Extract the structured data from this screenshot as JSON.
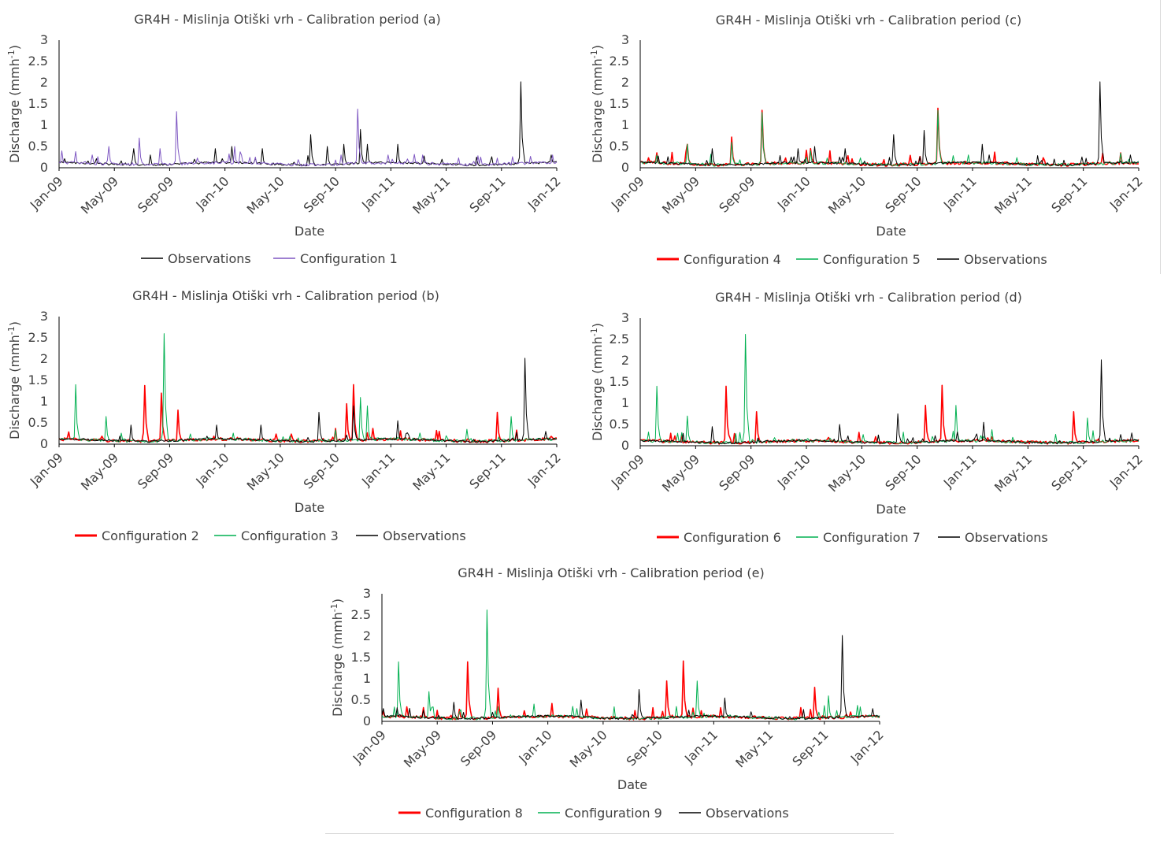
{
  "colors": {
    "observations": "#000000",
    "config1": "#7e57c2",
    "red": "#ff0000",
    "green": "#00b050"
  },
  "charts": [
    {
      "id": "a",
      "title": "GR4H - Mislinja Otiški vrh - Calibration period (a)",
      "xlabel": "Date",
      "ylabel": "Discharge (mmh",
      "ylabel_sup": "-1",
      "ylabel_end": ")",
      "legend": [
        "Observations",
        "Configuration 1"
      ]
    },
    {
      "id": "c",
      "title": "GR4H - Mislinja Otiški vrh - Calibration period (c)",
      "xlabel": "Date",
      "ylabel": "Discharge (mmh",
      "ylabel_sup": "-1",
      "ylabel_end": ")",
      "legend": [
        "Configuration 4",
        "Configuration 5",
        "Observations"
      ]
    },
    {
      "id": "b",
      "title": "GR4H - Mislinja Otiški vrh - Calibration period (b)",
      "xlabel": "Date",
      "ylabel": "Discharge (mmh",
      "ylabel_sup": "-1",
      "ylabel_end": ")",
      "legend": [
        "Configuration 2",
        "Configuration 3",
        "Observations"
      ]
    },
    {
      "id": "d",
      "title": "GR4H - Mislinja Otiški vrh - Calibration period (d)",
      "xlabel": "Date",
      "ylabel": "Discharge (mmh",
      "ylabel_sup": "-1",
      "ylabel_end": ")",
      "legend": [
        "Configuration 6",
        "Configuration 7",
        "Observations"
      ]
    },
    {
      "id": "e",
      "title": "GR4H - Mislinja Otiški vrh - Calibration period (e)",
      "xlabel": "Date",
      "ylabel": "Discharge (mmh",
      "ylabel_sup": "-1",
      "ylabel_end": ")",
      "legend": [
        "Configuration 8",
        "Configuration 9",
        "Observations"
      ]
    }
  ],
  "chart_data": [
    {
      "id": "a",
      "type": "line",
      "title": "GR4H - Mislinja Otiški vrh - Calibration period (a)",
      "xlabel": "Date",
      "ylabel": "Discharge (mmh-1)",
      "ylim": [
        0,
        3
      ],
      "yticks": [
        "0",
        "0.5",
        "1",
        "1.5",
        "2",
        "2.5",
        "3"
      ],
      "xticks": [
        "Jan-09",
        "May-09",
        "Sep-09",
        "Jan-10",
        "May-10",
        "Sep-10",
        "Jan-11",
        "May-11",
        "Sep-11",
        "Jan-12"
      ],
      "legend_position": "bottom",
      "series": [
        {
          "name": "Observations",
          "color": "#000000",
          "peaks": [
            [
              "Jan-09",
              0.08
            ],
            [
              "Jun-09",
              0.45
            ],
            [
              "Jul-09",
              0.3
            ],
            [
              "Oct-09",
              0.2
            ],
            [
              "Dec-09",
              0.45
            ],
            [
              "Jan-10",
              0.5
            ],
            [
              "Mar-10",
              0.45
            ],
            [
              "Jul-10",
              0.78
            ],
            [
              "Aug-10",
              0.5
            ],
            [
              "Sep-10",
              0.55
            ],
            [
              "Oct-10",
              0.9
            ],
            [
              "Nov-10",
              0.55
            ],
            [
              "Jan-11",
              0.55
            ],
            [
              "Apr-11",
              0.2
            ],
            [
              "Aug-11",
              0.15
            ],
            [
              "Oct-11",
              2.02
            ],
            [
              "Dec-11",
              0.3
            ]
          ]
        },
        {
          "name": "Configuration 1",
          "color": "#7e57c2",
          "peaks": [
            [
              "Feb-09",
              0.38
            ],
            [
              "Mar-09",
              0.3
            ],
            [
              "Apr-09",
              0.5
            ],
            [
              "Jun-09",
              0.7
            ],
            [
              "Aug-09",
              0.45
            ],
            [
              "Sep-09",
              1.32
            ],
            [
              "Jan-10",
              0.5
            ],
            [
              "Mar-10",
              0.25
            ],
            [
              "Sep-10",
              0.3
            ],
            [
              "Oct-10",
              1.38
            ],
            [
              "Dec-10",
              0.3
            ],
            [
              "Mar-11",
              0.3
            ],
            [
              "Jul-11",
              0.25
            ],
            [
              "Dec-11",
              0.3
            ]
          ]
        }
      ]
    },
    {
      "id": "c",
      "type": "line",
      "title": "GR4H - Mislinja Otiški vrh - Calibration period (c)",
      "xlabel": "Date",
      "ylabel": "Discharge (mmh-1)",
      "ylim": [
        0,
        3
      ],
      "yticks": [
        "0",
        "0.5",
        "1",
        "1.5",
        "2",
        "2.5",
        "3"
      ],
      "xticks": [
        "Jan-09",
        "May-09",
        "Sep-09",
        "Jan-10",
        "May-10",
        "Sep-10",
        "Jan-11",
        "May-11",
        "Sep-11",
        "Jan-12"
      ],
      "legend_position": "bottom",
      "series": [
        {
          "name": "Configuration 4",
          "color": "#ff0000",
          "peaks": [
            [
              "Feb-09",
              0.35
            ],
            [
              "Apr-09",
              0.55
            ],
            [
              "Jul-09",
              0.72
            ],
            [
              "Sep-09",
              1.35
            ],
            [
              "Jan-10",
              0.45
            ],
            [
              "Oct-10",
              1.4
            ],
            [
              "Nov-11",
              0.35
            ]
          ]
        },
        {
          "name": "Configuration 5",
          "color": "#00b050",
          "peaks": [
            [
              "Feb-09",
              0.3
            ],
            [
              "Apr-09",
              0.55
            ],
            [
              "Jul-09",
              0.6
            ],
            [
              "Sep-09",
              1.3
            ],
            [
              "Jan-10",
              0.4
            ],
            [
              "Oct-10",
              1.35
            ],
            [
              "Dec-10",
              0.3
            ]
          ]
        },
        {
          "name": "Observations",
          "color": "#000000",
          "peaks": [
            [
              "Jun-09",
              0.45
            ],
            [
              "Dec-09",
              0.45
            ],
            [
              "Jan-10",
              0.5
            ],
            [
              "Mar-10",
              0.45
            ],
            [
              "Jul-10",
              0.78
            ],
            [
              "Sep-10",
              0.88
            ],
            [
              "Jan-11",
              0.55
            ],
            [
              "Oct-11",
              2.02
            ],
            [
              "Dec-11",
              0.3
            ]
          ]
        }
      ]
    },
    {
      "id": "b",
      "type": "line",
      "title": "GR4H - Mislinja Otiški vrh - Calibration period (b)",
      "xlabel": "Date",
      "ylabel": "Discharge (mmh-1)",
      "ylim": [
        0,
        3
      ],
      "yticks": [
        "0",
        "0.5",
        "1",
        "1.5",
        "2",
        "2.5",
        "3"
      ],
      "xticks": [
        "Jan-09",
        "May-09",
        "Sep-09",
        "Jan-10",
        "May-10",
        "Sep-10",
        "Jan-11",
        "May-11",
        "Sep-11",
        "Jan-12"
      ],
      "legend_position": "bottom",
      "series": [
        {
          "name": "Configuration 2",
          "color": "#ff0000",
          "peaks": [
            [
              "Jul-09",
              1.38
            ],
            [
              "Aug-09",
              1.2
            ],
            [
              "Sep-09",
              0.8
            ],
            [
              "Sep-10",
              0.95
            ],
            [
              "Oct-10",
              1.4
            ],
            [
              "Apr-11",
              0.3
            ],
            [
              "Aug-11",
              0.75
            ]
          ]
        },
        {
          "name": "Configuration 3",
          "color": "#00b050",
          "peaks": [
            [
              "Feb-09",
              1.4
            ],
            [
              "Apr-09",
              0.65
            ],
            [
              "Aug-09",
              2.6
            ],
            [
              "Oct-10",
              1.1
            ],
            [
              "Nov-10",
              0.9
            ],
            [
              "Jun-11",
              0.35
            ],
            [
              "Sep-11",
              0.65
            ]
          ]
        },
        {
          "name": "Observations",
          "color": "#000000",
          "peaks": [
            [
              "Jun-09",
              0.45
            ],
            [
              "Dec-09",
              0.45
            ],
            [
              "Mar-10",
              0.45
            ],
            [
              "Jul-10",
              0.75
            ],
            [
              "Oct-10",
              0.9
            ],
            [
              "Jan-11",
              0.55
            ],
            [
              "Oct-11",
              2.02
            ],
            [
              "Dec-11",
              0.3
            ]
          ]
        }
      ]
    },
    {
      "id": "d",
      "type": "line",
      "title": "GR4H - Mislinja Otiški vrh - Calibration period (d)",
      "xlabel": "Date",
      "ylabel": "Discharge (mmh-1)",
      "ylim": [
        0,
        3
      ],
      "yticks": [
        "0",
        "0.5",
        "1",
        "1.5",
        "2",
        "2.5",
        "3"
      ],
      "xticks": [
        "Jan-09",
        "May-09",
        "Sep-09",
        "Jan-10",
        "May-10",
        "Sep-10",
        "Jan-11",
        "May-11",
        "Sep-11",
        "Jan-12"
      ],
      "legend_position": "bottom",
      "series": [
        {
          "name": "Configuration 6",
          "color": "#ff0000",
          "peaks": [
            [
              "Jul-09",
              1.4
            ],
            [
              "Sep-09",
              0.8
            ],
            [
              "Sep-10",
              0.95
            ],
            [
              "Oct-10",
              1.42
            ],
            [
              "Aug-11",
              0.8
            ]
          ]
        },
        {
          "name": "Configuration 7",
          "color": "#00b050",
          "peaks": [
            [
              "Feb-09",
              1.4
            ],
            [
              "Apr-09",
              0.7
            ],
            [
              "Aug-09",
              2.62
            ],
            [
              "Nov-10",
              0.95
            ],
            [
              "Sep-11",
              0.65
            ]
          ]
        },
        {
          "name": "Observations",
          "color": "#000000",
          "peaks": [
            [
              "Jun-09",
              0.45
            ],
            [
              "Mar-10",
              0.5
            ],
            [
              "Jul-10",
              0.75
            ],
            [
              "Jan-11",
              0.55
            ],
            [
              "Oct-11",
              2.02
            ],
            [
              "Dec-11",
              0.3
            ]
          ]
        }
      ]
    },
    {
      "id": "e",
      "type": "line",
      "title": "GR4H - Mislinja Otiški vrh - Calibration period (e)",
      "xlabel": "Date",
      "ylabel": "Discharge (mmh-1)",
      "ylim": [
        0,
        3
      ],
      "yticks": [
        "0",
        "0.5",
        "1",
        "1.5",
        "2",
        "2.5",
        "3"
      ],
      "xticks": [
        "Jan-09",
        "May-09",
        "Sep-09",
        "Jan-10",
        "May-10",
        "Sep-10",
        "Jan-11",
        "May-11",
        "Sep-11",
        "Jan-12"
      ],
      "legend_position": "bottom",
      "series": [
        {
          "name": "Configuration 8",
          "color": "#ff0000",
          "peaks": [
            [
              "Jul-09",
              1.4
            ],
            [
              "Sep-09",
              0.78
            ],
            [
              "Sep-10",
              0.95
            ],
            [
              "Oct-10",
              1.42
            ],
            [
              "Aug-11",
              0.8
            ]
          ]
        },
        {
          "name": "Configuration 9",
          "color": "#00b050",
          "peaks": [
            [
              "Feb-09",
              1.4
            ],
            [
              "Apr-09",
              0.7
            ],
            [
              "Aug-09",
              2.62
            ],
            [
              "Nov-10",
              0.95
            ],
            [
              "Sep-11",
              0.6
            ]
          ]
        },
        {
          "name": "Observations",
          "color": "#000000",
          "peaks": [
            [
              "Jun-09",
              0.45
            ],
            [
              "Mar-10",
              0.5
            ],
            [
              "Jul-10",
              0.75
            ],
            [
              "Jan-11",
              0.55
            ],
            [
              "Oct-11",
              2.02
            ],
            [
              "Dec-11",
              0.3
            ]
          ]
        }
      ]
    }
  ]
}
